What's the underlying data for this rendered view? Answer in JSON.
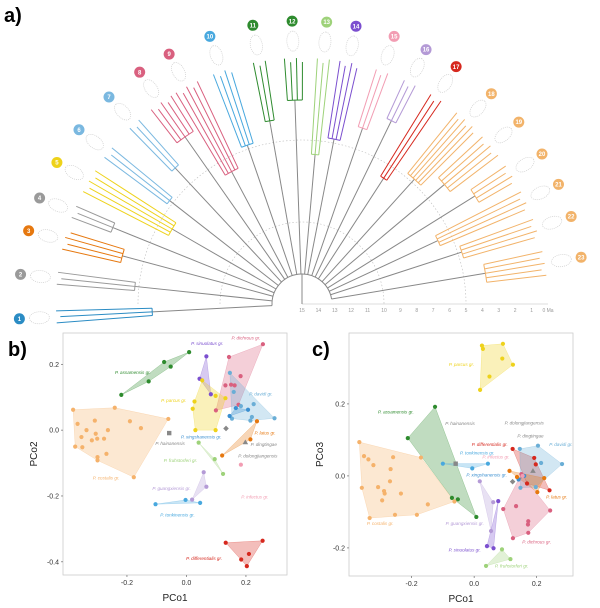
{
  "panels": {
    "a": "a)",
    "b": "b)",
    "c": "c)"
  },
  "tree": {
    "time_ticks": [
      "15",
      "14",
      "13",
      "12",
      "11",
      "10",
      "9",
      "8",
      "7",
      "6",
      "5",
      "4",
      "3",
      "2",
      "1",
      "0 Ma"
    ],
    "clades": [
      {
        "n": "1",
        "color": "#2b8cc4"
      },
      {
        "n": "2",
        "color": "#9a9a9a"
      },
      {
        "n": "3",
        "color": "#e6780f"
      },
      {
        "n": "4",
        "color": "#9a9a9a"
      },
      {
        "n": "5",
        "color": "#eed21a"
      },
      {
        "n": "6",
        "color": "#7ab8e0"
      },
      {
        "n": "7",
        "color": "#7ab8e0"
      },
      {
        "n": "8",
        "color": "#d9607f"
      },
      {
        "n": "9",
        "color": "#d9607f"
      },
      {
        "n": "10",
        "color": "#48a8de"
      },
      {
        "n": "11",
        "color": "#2e8b2e"
      },
      {
        "n": "12",
        "color": "#2e8b2e"
      },
      {
        "n": "13",
        "color": "#9ed27a"
      },
      {
        "n": "14",
        "color": "#7b4fcf"
      },
      {
        "n": "15",
        "color": "#f29db3"
      },
      {
        "n": "16",
        "color": "#b49ad6"
      },
      {
        "n": "17",
        "color": "#d6281e"
      },
      {
        "n": "18",
        "color": "#f2b36a"
      },
      {
        "n": "19",
        "color": "#f2b36a"
      },
      {
        "n": "20",
        "color": "#f2b36a"
      },
      {
        "n": "21",
        "color": "#f2b36a"
      },
      {
        "n": "22",
        "color": "#f2b36a"
      },
      {
        "n": "23",
        "color": "#f2b36a"
      }
    ]
  },
  "groups": {
    "costalis": {
      "label": "P. costalis gr.",
      "color": "#f5b26b"
    },
    "assamensis": {
      "label": "P. assamensis gr.",
      "color": "#2e8b2e"
    },
    "sinuolatus": {
      "label": "P. sinuolatus gr.",
      "color": "#7b4fcf"
    },
    "dichrous": {
      "label": "P. dichrous gr.",
      "color": "#d9607f"
    },
    "parcus": {
      "label": "P. parcus gr.",
      "color": "#eed21a"
    },
    "davidi": {
      "label": "P. davidi gr.",
      "color": "#6aaed6"
    },
    "xingshanensis": {
      "label": "P. xingshanensis gr.",
      "color": "#3a8fd0"
    },
    "hainanensis": {
      "label": "P. hainanensis",
      "color": "#888888"
    },
    "dolongjiangensis": {
      "label": "P. dolongjiangensis",
      "color": "#888888"
    },
    "dingtingae": {
      "label": "P. dingtingae",
      "color": "#888888"
    },
    "latus": {
      "label": "P. latus gr.",
      "color": "#e6780f"
    },
    "fruhstorferi": {
      "label": "P. fruhstorferi gr.",
      "color": "#9ed27a"
    },
    "infectus": {
      "label": "P. infectus gr.",
      "color": "#f29db3"
    },
    "guangxiensis": {
      "label": "P. guangxiensis gr.",
      "color": "#b49ad6"
    },
    "tonkinensis": {
      "label": "P. tonkinensis gr.",
      "color": "#48a8de"
    },
    "differentialis": {
      "label": "P. differentialis gr.",
      "color": "#d6281e"
    }
  },
  "chart_data": [
    {
      "type": "scatter",
      "xlabel": "PCo1",
      "ylabel": "PCo2",
      "xlim": [
        -0.415,
        0.338
      ],
      "ylim": [
        -0.44,
        0.295
      ],
      "xticks": [
        "-0.2",
        "0.0",
        "0.2"
      ],
      "xtick_values": [
        -0.2,
        0,
        0.2
      ],
      "yticks": [
        "0.2",
        "0.0",
        "-0.2",
        "-0.4"
      ],
      "ytick_values": [
        0.2,
        0,
        -0.2,
        -0.4
      ],
      "series": {
        "costalis": [
          [
            -0.381,
            0.062
          ],
          [
            -0.366,
            0.019
          ],
          [
            -0.374,
            -0.05
          ],
          [
            -0.336,
            0
          ],
          [
            -0.353,
            -0.021
          ],
          [
            -0.35,
            -0.052
          ],
          [
            -0.308,
            0.029
          ],
          [
            -0.305,
            -0.011
          ],
          [
            -0.318,
            -0.031
          ],
          [
            -0.3,
            -0.026
          ],
          [
            -0.299,
            -0.082
          ],
          [
            -0.299,
            -0.092
          ],
          [
            -0.277,
            -0.026
          ],
          [
            -0.264,
            0
          ],
          [
            -0.269,
            -0.072
          ],
          [
            -0.241,
            0.068
          ],
          [
            -0.19,
            0.027
          ],
          [
            -0.177,
            -0.143
          ],
          [
            -0.153,
            0.006
          ],
          [
            -0.061,
            0.034
          ]
        ],
        "assamensis": [
          [
            -0.219,
            0.107
          ],
          [
            -0.127,
            0.148
          ],
          [
            -0.075,
            0.207
          ],
          [
            -0.053,
            0.193
          ],
          [
            0.009,
            0.237
          ]
        ],
        "sinuolatus": [
          [
            0.067,
            0.224
          ],
          [
            0.044,
            0.156
          ],
          [
            0.082,
            0.109
          ]
        ],
        "dichrous": [
          [
            0.257,
            0.261
          ],
          [
            0.143,
            0.222
          ],
          [
            0.182,
            0.164
          ],
          [
            0.131,
            0.136
          ],
          [
            0.15,
            0.138
          ],
          [
            0.162,
            0.136
          ],
          [
            0.099,
            0.06
          ],
          [
            0.175,
            0.077
          ]
        ],
        "parcus": [
          [
            0.053,
            0.151
          ],
          [
            0.098,
            0.104
          ],
          [
            0.027,
            0.087
          ],
          [
            0.021,
            0.065
          ],
          [
            0.03,
            0
          ],
          [
            0.098,
            0
          ],
          [
            0.131,
            0.097
          ]
        ],
        "davidi": [
          [
            0.146,
            0.174
          ],
          [
            0.159,
            0.116
          ],
          [
            0.183,
            0.073
          ],
          [
            0.226,
            0.079
          ],
          [
            0.296,
            0.036
          ],
          [
            0.22,
            0.04
          ],
          [
            0.215,
            0.029
          ],
          [
            0.153,
            0.035
          ]
        ],
        "xingshanensis": [
          [
            0.145,
            0.043
          ],
          [
            0.166,
            0.067
          ],
          [
            0.207,
            0.062
          ]
        ],
        "hainanensis": [
          [
            -0.058,
            -0.009
          ]
        ],
        "dolongjiangensis": [
          [
            0.133,
            0.005
          ]
        ],
        "dingtingae": [
          [
            0.198,
            -0.037
          ]
        ],
        "latus": [
          [
            0.237,
            0.027
          ],
          [
            0.215,
            -0.028
          ],
          [
            0.12,
            -0.077
          ]
        ],
        "fruhstorferi": [
          [
            0.041,
            -0.038
          ],
          [
            0.095,
            -0.088
          ],
          [
            0.123,
            -0.133
          ]
        ],
        "infectus": [
          [
            0.183,
            -0.105
          ]
        ],
        "guangxiensis": [
          [
            0.058,
            -0.128
          ],
          [
            0.067,
            -0.172
          ],
          [
            0.019,
            -0.211
          ]
        ],
        "tonkinensis": [
          [
            -0.104,
            -0.225
          ],
          [
            -0.003,
            -0.212
          ],
          [
            0.046,
            -0.221
          ]
        ],
        "differentialis": [
          [
            0.132,
            -0.342
          ],
          [
            0.256,
            -0.336
          ],
          [
            0.21,
            -0.376
          ],
          [
            0.184,
            -0.393
          ],
          [
            0.203,
            -0.413
          ]
        ]
      }
    },
    {
      "type": "scatter",
      "xlabel": "PCo1",
      "ylabel": "PCo3",
      "xlim": [
        -0.4,
        0.316
      ],
      "ylim": [
        -0.278,
        0.397
      ],
      "xticks": [
        "-0.2",
        "0.0",
        "0.2"
      ],
      "xtick_values": [
        -0.2,
        0,
        0.2
      ],
      "yticks": [
        "0.2",
        "0.0",
        "-0.2"
      ],
      "ytick_values": [
        0.2,
        0,
        -0.2
      ],
      "series": {
        "parcus": [
          [
            0.025,
            0.362
          ],
          [
            0.028,
            0.353
          ],
          [
            0.092,
            0.367
          ],
          [
            0.09,
            0.326
          ],
          [
            0.124,
            0.309
          ],
          [
            0.049,
            0.276
          ],
          [
            0.019,
            0.239
          ]
        ],
        "assamensis": [
          [
            -0.125,
            0.192
          ],
          [
            -0.212,
            0.105
          ],
          [
            -0.071,
            -0.061
          ],
          [
            -0.052,
            -0.065
          ],
          [
            0.007,
            -0.114
          ]
        ],
        "costalis": [
          [
            -0.367,
            0.094
          ],
          [
            -0.352,
            0.055
          ],
          [
            -0.338,
            0.046
          ],
          [
            -0.322,
            0.03
          ],
          [
            -0.259,
            0.052
          ],
          [
            -0.17,
            0.051
          ],
          [
            -0.267,
            0.019
          ],
          [
            -0.359,
            -0.033
          ],
          [
            -0.307,
            -0.031
          ],
          [
            -0.288,
            -0.042
          ],
          [
            -0.286,
            -0.049
          ],
          [
            -0.294,
            -0.068
          ],
          [
            -0.234,
            -0.049
          ],
          [
            -0.269,
            -0.015
          ],
          [
            -0.334,
            -0.117
          ],
          [
            -0.253,
            -0.108
          ],
          [
            -0.183,
            -0.108
          ],
          [
            -0.148,
            -0.079
          ],
          [
            -0.063,
            -0.071
          ]
        ],
        "tonkinensis": [
          [
            -0.1,
            0.034
          ],
          [
            -0.006,
            0.021
          ],
          [
            0.044,
            0.034
          ]
        ],
        "hainanensis": [
          [
            -0.059,
            0.034
          ]
        ],
        "differentialis": [
          [
            0.123,
            0.075
          ],
          [
            0.192,
            0.05
          ],
          [
            0.197,
            0.032
          ],
          [
            0.169,
            -0.021
          ],
          [
            0.241,
            -0.04
          ]
        ],
        "davidi": [
          [
            0.146,
            0.075
          ],
          [
            0.204,
            0.084
          ],
          [
            0.214,
            0.036
          ],
          [
            0.281,
            0.033
          ],
          [
            0.148,
            -0.033
          ],
          [
            0.197,
            -0.031
          ]
        ],
        "xingshanensis": [
          [
            0.142,
            -0.01
          ],
          [
            0.16,
            0.0
          ]
        ],
        "latus": [
          [
            0.113,
            0.014
          ],
          [
            0.224,
            -0.006
          ],
          [
            0.202,
            -0.045
          ],
          [
            0.137,
            -0.003
          ]
        ],
        "dichrous": [
          [
            0.093,
            -0.092
          ],
          [
            0.134,
            -0.084
          ],
          [
            0.243,
            -0.096
          ],
          [
            0.173,
            -0.126
          ],
          [
            0.172,
            -0.135
          ],
          [
            0.173,
            -0.158
          ],
          [
            0.124,
            -0.173
          ],
          [
            0.151,
            0.005
          ]
        ],
        "infectus": [
          [
            0.155,
            0.0
          ]
        ],
        "dingtingae": [
          [
            0.188,
            0.014
          ]
        ],
        "dolongjiangensis": [
          [
            0.123,
            -0.016
          ]
        ],
        "guangxiensis": [
          [
            0.018,
            -0.015
          ],
          [
            0.061,
            -0.073
          ],
          [
            0.054,
            -0.153
          ]
        ],
        "sinuolatus": [
          [
            0.077,
            -0.07
          ],
          [
            0.041,
            -0.195
          ],
          [
            0.062,
            -0.201
          ]
        ],
        "fruhstorferi": [
          [
            0.089,
            -0.204
          ],
          [
            0.116,
            -0.231
          ],
          [
            0.038,
            -0.25
          ]
        ]
      }
    }
  ]
}
